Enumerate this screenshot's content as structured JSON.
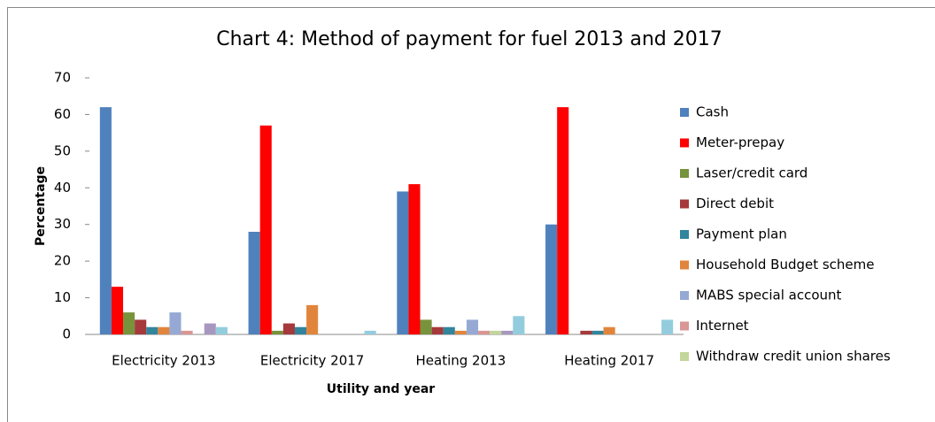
{
  "chart_data": {
    "type": "bar",
    "title": "Chart 4: Method of payment for fuel 2013 and 2017",
    "x_label": "Utility and year",
    "y_label": "Percentage",
    "categories": [
      "Electricity 2013",
      "Electricity 2017",
      "Heating 2013",
      "Heating 2017"
    ],
    "series": [
      {
        "name": "Cash",
        "color": "#4f81bd",
        "values": [
          62,
          28,
          39,
          30
        ]
      },
      {
        "name": "Meter-prepay",
        "color": "#ff0000",
        "values": [
          13,
          57,
          41,
          62
        ]
      },
      {
        "name": "Laser/credit card",
        "color": "#77933c",
        "values": [
          6,
          1,
          4,
          0
        ]
      },
      {
        "name": "Direct debit",
        "color": "#a5393b",
        "values": [
          4,
          3,
          2,
          1
        ]
      },
      {
        "name": "Payment plan",
        "color": "#31859c",
        "values": [
          2,
          2,
          2,
          1
        ]
      },
      {
        "name": "Household Budget scheme",
        "color": "#e2853c",
        "values": [
          2,
          8,
          1,
          2
        ]
      },
      {
        "name": "MABS special account",
        "color": "#95a9d4",
        "values": [
          6,
          0,
          4,
          0
        ]
      },
      {
        "name": "Internet",
        "color": "#d99694",
        "values": [
          1,
          0,
          1,
          0
        ]
      },
      {
        "name": "Withdraw credit union shares",
        "color": "#c3d69b",
        "values": [
          0,
          0,
          1,
          0
        ]
      },
      {
        "color": "#a797bf",
        "values": [
          3,
          0,
          1,
          0
        ]
      },
      {
        "color": "#93cddd",
        "values": [
          2,
          1,
          5,
          4
        ]
      }
    ],
    "ylim": [
      0,
      70
    ],
    "yticks": [
      0,
      10,
      20,
      30,
      40,
      50,
      60,
      70
    ],
    "grid": false,
    "legend": "right"
  }
}
